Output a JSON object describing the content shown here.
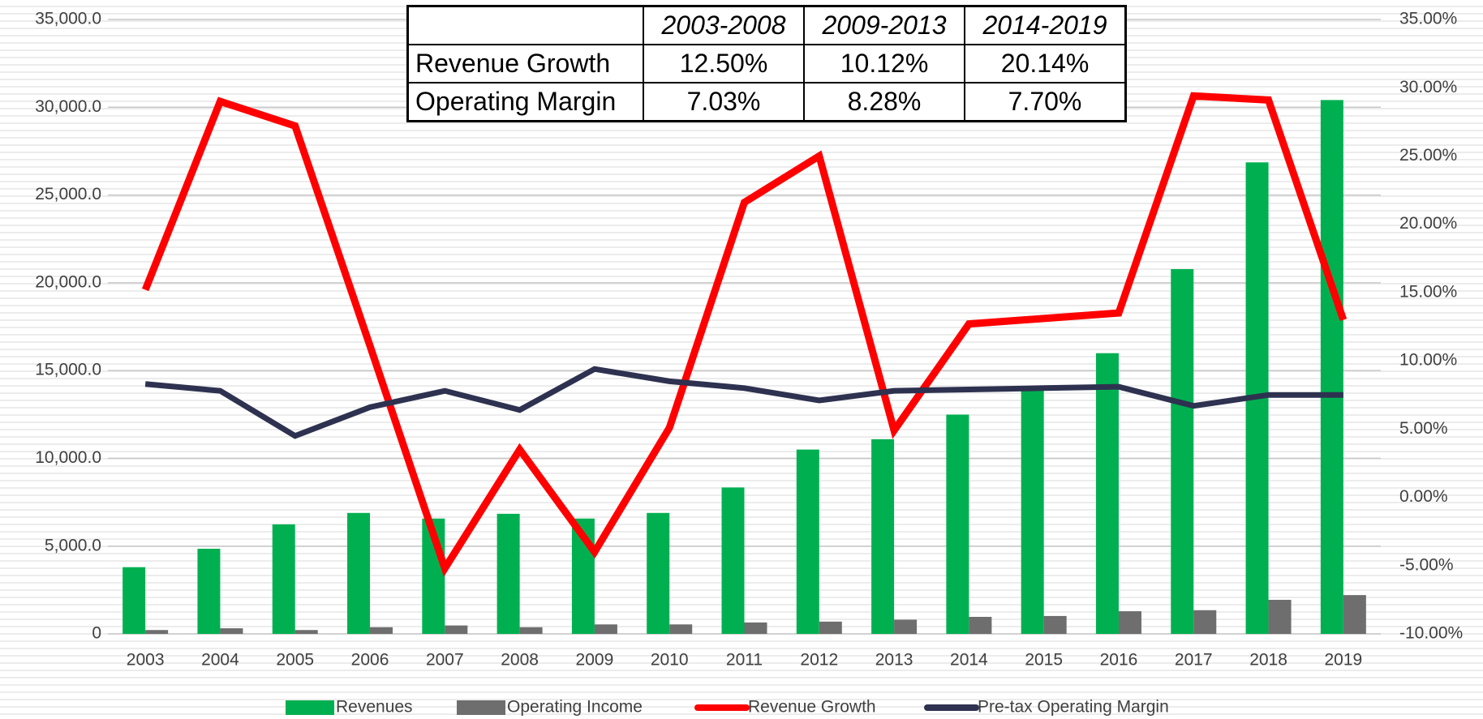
{
  "chart_data": {
    "type": "bar_line",
    "categories": [
      "2003",
      "2004",
      "2005",
      "2006",
      "2007",
      "2008",
      "2009",
      "2010",
      "2011",
      "2012",
      "2013",
      "2014",
      "2015",
      "2016",
      "2017",
      "2018",
      "2019"
    ],
    "series": [
      {
        "name": "Revenues",
        "type": "bar",
        "color": "#00b050",
        "values": [
          3800,
          4850,
          6240,
          6890,
          6570,
          6840,
          6570,
          6890,
          8340,
          10500,
          11090,
          12490,
          14050,
          15990,
          20780,
          26860,
          30410
        ]
      },
      {
        "name": "Operating Income",
        "type": "bar",
        "color": "#6e6e6e",
        "values": [
          220,
          320,
          220,
          380,
          480,
          380,
          540,
          540,
          650,
          700,
          810,
          970,
          1020,
          1290,
          1350,
          1940,
          2210
        ]
      },
      {
        "name": "Revenue Growth",
        "type": "line",
        "axis": "y2",
        "color": "#ff0000",
        "values": [
          15.2,
          29.0,
          27.2,
          11.1,
          -5.2,
          3.5,
          -4.0,
          5.1,
          21.6,
          25.0,
          4.9,
          12.7,
          13.1,
          13.5,
          29.4,
          29.1,
          13.0
        ]
      },
      {
        "name": "Pre-tax Operating Margin",
        "type": "line",
        "axis": "y2",
        "color": "#2e3250",
        "values": [
          8.3,
          7.8,
          4.5,
          6.6,
          7.8,
          6.4,
          9.4,
          8.5,
          8.0,
          7.1,
          7.8,
          7.9,
          8.0,
          8.1,
          6.7,
          7.5,
          7.5
        ]
      }
    ],
    "ylim": [
      0,
      35000
    ],
    "yticks": [
      0,
      {
        "value": 5000,
        "label": "5,000.0"
      },
      {
        "value": 10000,
        "label": "10,000.0"
      },
      {
        "value": 15000,
        "label": "15,000.0"
      },
      {
        "value": 20000,
        "label": "20,000.0"
      },
      {
        "value": 25000,
        "label": "25,000.0"
      },
      {
        "value": 30000,
        "label": "30,000.0"
      },
      {
        "value": 35000,
        "label": "35,000.0"
      }
    ],
    "y2lim": [
      -10,
      35
    ],
    "y2ticks": [
      {
        "value": -10,
        "label": "-10.00%"
      },
      {
        "value": -5,
        "label": "-5.00%"
      },
      {
        "value": 0,
        "label": "0.00%"
      },
      {
        "value": 5,
        "label": "5.00%"
      },
      {
        "value": 10,
        "label": "10.00%"
      },
      {
        "value": 15,
        "label": "15.00%"
      },
      {
        "value": 20,
        "label": "20.00%"
      },
      {
        "value": 25,
        "label": "25.00%"
      },
      {
        "value": 30,
        "label": "30.00%"
      },
      {
        "value": 35,
        "label": "35.00%"
      }
    ],
    "grid": true,
    "legend": "bottom"
  },
  "table": {
    "columns": [
      "2003-2008",
      "2009-2013",
      "2014-2019"
    ],
    "rows": [
      {
        "label": "Revenue Growth",
        "values": [
          "12.50%",
          "10.12%",
          "20.14%"
        ]
      },
      {
        "label": "Operating Margin",
        "values": [
          "7.03%",
          "8.28%",
          "7.70%"
        ]
      }
    ]
  }
}
